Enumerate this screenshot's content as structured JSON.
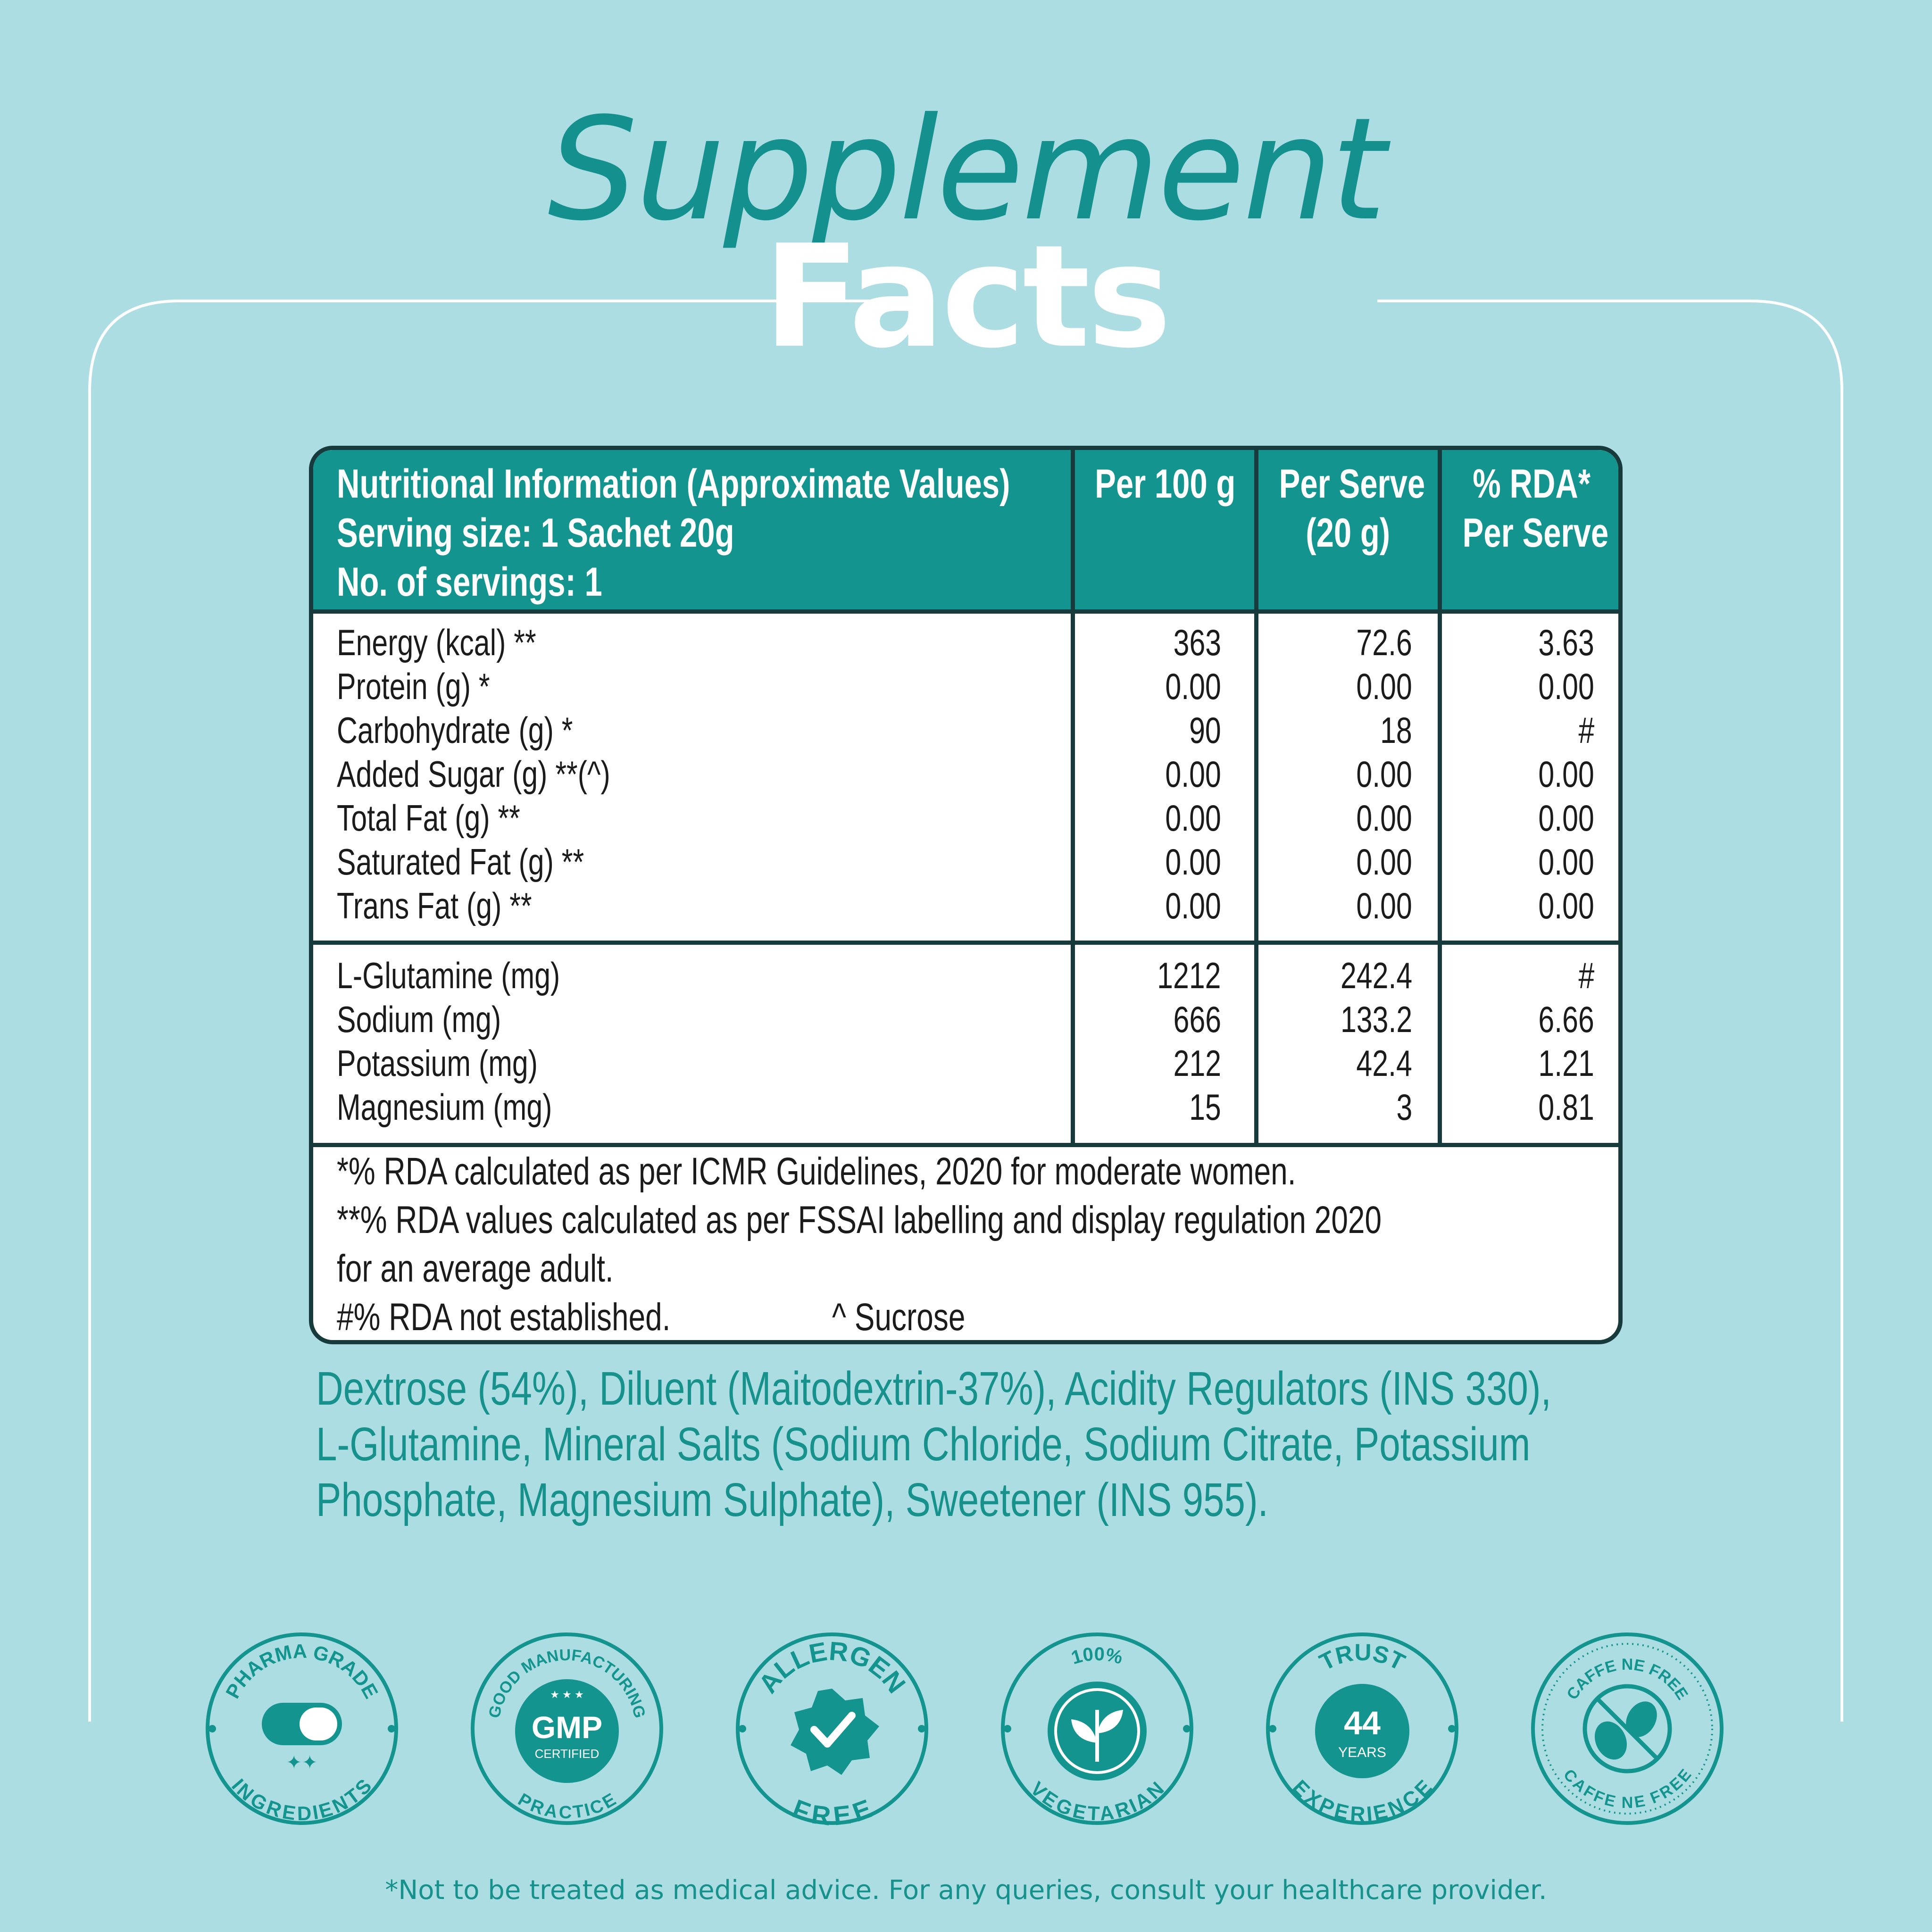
{
  "title": {
    "line1": "Supplement",
    "line2": "Facts"
  },
  "table": {
    "header": {
      "main": [
        "Nutritional Information (Approximate Values)",
        "Serving size: 1 Sachet 20g",
        "No. of servings: 1"
      ],
      "col1": [
        "Per 100 g"
      ],
      "col2": [
        "Per Serve",
        "(20 g)"
      ],
      "col3": [
        "% RDA*",
        "Per Serve"
      ]
    },
    "section1": [
      {
        "name": "Energy (kcal) **",
        "per100": "363",
        "perServe": "72.6",
        "rda": "3.63"
      },
      {
        "name": "Protein (g) *",
        "per100": "0.00",
        "perServe": "0.00",
        "rda": "0.00"
      },
      {
        "name": "Carbohydrate (g) *",
        "per100": "90",
        "perServe": "18",
        "rda": "#"
      },
      {
        "name": "Added Sugar (g) **(^)",
        "per100": "0.00",
        "perServe": "0.00",
        "rda": "0.00"
      },
      {
        "name": "Total Fat (g) **",
        "per100": "0.00",
        "perServe": "0.00",
        "rda": "0.00"
      },
      {
        "name": "Saturated Fat (g) **",
        "per100": "0.00",
        "perServe": "0.00",
        "rda": "0.00"
      },
      {
        "name": "Trans Fat (g) **",
        "per100": "0.00",
        "perServe": "0.00",
        "rda": "0.00"
      }
    ],
    "section2": [
      {
        "name": "L-Glutamine (mg)",
        "per100": "1212",
        "perServe": "242.4",
        "rda": "#"
      },
      {
        "name": "Sodium (mg)",
        "per100": "666",
        "perServe": "133.2",
        "rda": "6.66"
      },
      {
        "name": "Potassium (mg)",
        "per100": "212",
        "perServe": "42.4",
        "rda": "1.21"
      },
      {
        "name": "Magnesium (mg)",
        "per100": "15",
        "perServe": "3",
        "rda": "0.81"
      }
    ],
    "notes": {
      "line1": "*% RDA calculated as per ICMR Guidelines, 2020  for moderate women.",
      "line2": "**% RDA values calculated as per FSSAI labelling and display regulation 2020",
      "line3": "for an average adult.",
      "line4a": "#% RDA not established.",
      "line4b": "^ Sucrose"
    }
  },
  "ingredients": [
    "Dextrose (54%), Diluent (Maitodextrin-37%), Acidity Regulators (INS 330),",
    "L-Glutamine, Mineral Salts (Sodium Chloride, Sodium Citrate, Potassium",
    "Phosphate, Magnesium Sulphate), Sweetener (INS 955)."
  ],
  "badges": {
    "pharma": {
      "top": "PHARMA GRADE",
      "bottom": "INGREDIENTS"
    },
    "gmp": {
      "top": "GOOD MANUFACTURING",
      "center": "GMP",
      "sub": "CERTIFIED",
      "bottom": "PRACTICE"
    },
    "allergen": {
      "top": "ALLERGEN",
      "bottom": "FREE"
    },
    "veg": {
      "top": "100%",
      "bottom": "VEGETARIAN"
    },
    "trust": {
      "top": "TRUST",
      "number": "44",
      "sub": "YEARS",
      "bottom": "EXPERIENCE"
    },
    "caffeine": {
      "top": "CAFFE NE FREE",
      "bottom": "CAFFE NE FREE"
    }
  },
  "disclaimer": "*Not to be treated as medical advice. For any queries, consult your healthcare provider.",
  "colors": {
    "background": "#acdde2",
    "teal": "#14948f",
    "border": "#173a3d",
    "white": "#ffffff"
  }
}
